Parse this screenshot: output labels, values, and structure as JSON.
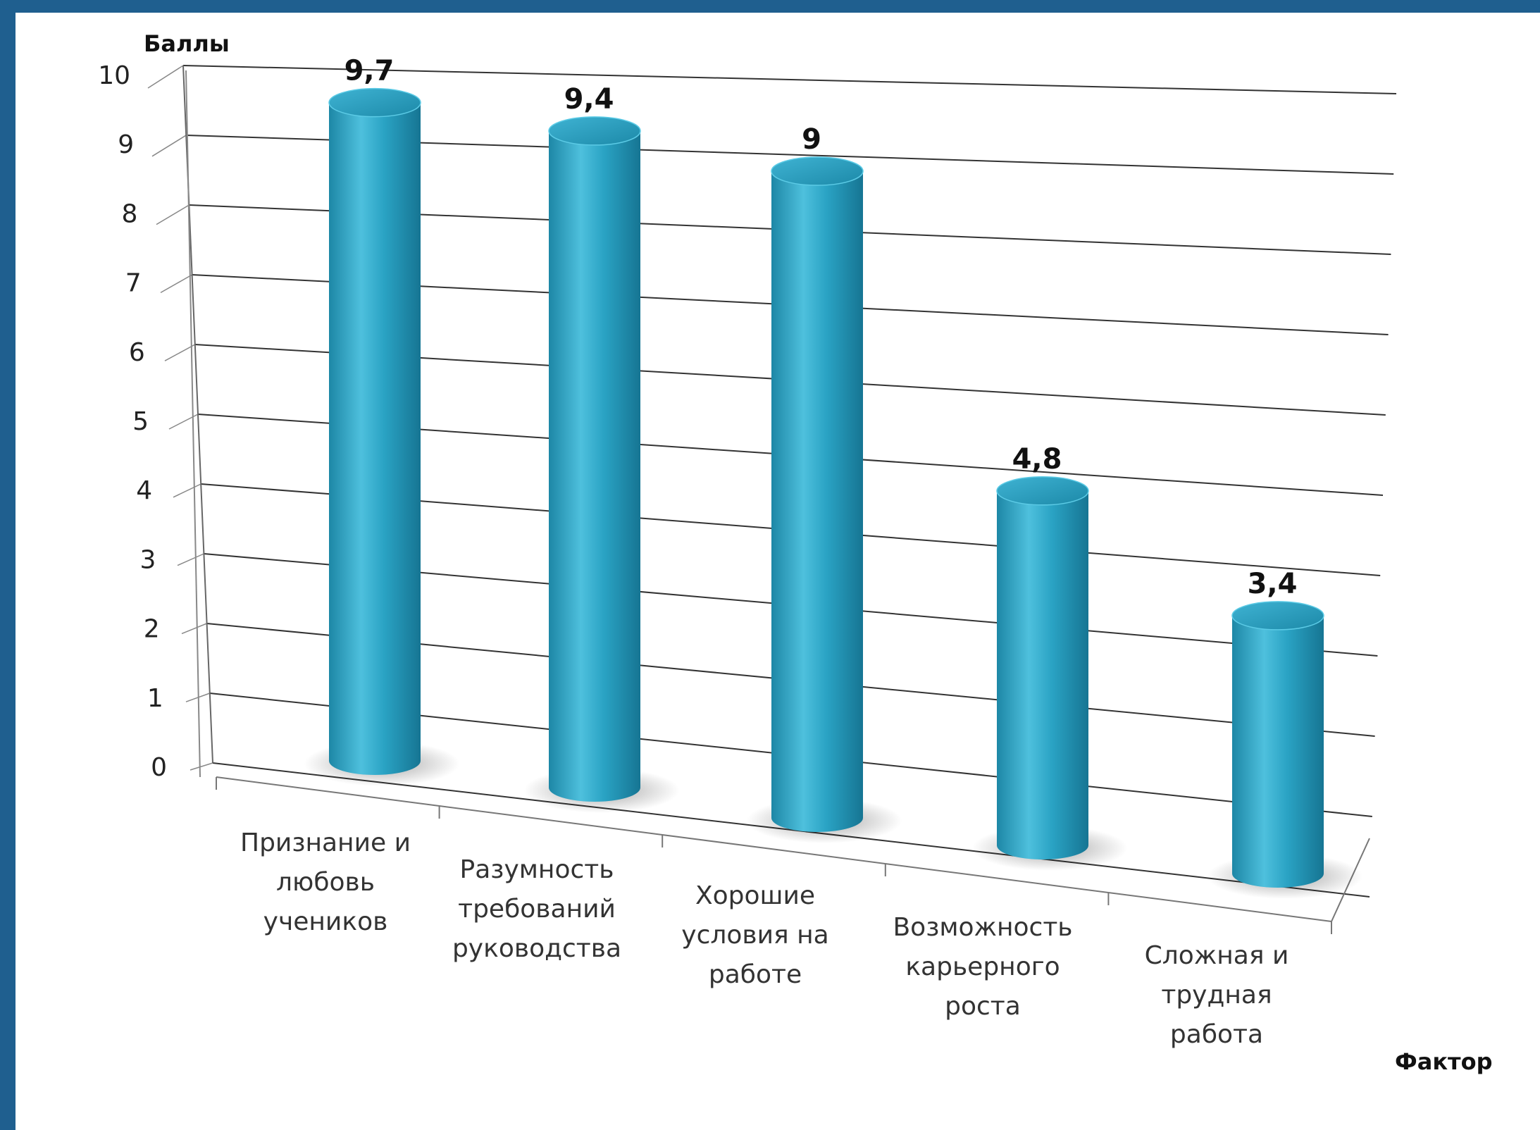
{
  "chart_data": {
    "type": "bar",
    "style": "3d-cylinder",
    "title": "",
    "ylabel": "Баллы",
    "xlabel": "Фактор",
    "ylim": [
      0,
      10
    ],
    "yticks": [
      "0",
      "1",
      "2",
      "3",
      "4",
      "5",
      "6",
      "7",
      "8",
      "9",
      "10"
    ],
    "grid": true,
    "categories": [
      [
        "Признание и",
        "любовь",
        "учеников"
      ],
      [
        "Разумность",
        "требований",
        "руководства"
      ],
      [
        "Хорошие",
        "условия на",
        "работе"
      ],
      [
        "Возможность",
        "карьерного",
        "роста"
      ],
      [
        "Сложная и",
        "трудная",
        "работа"
      ]
    ],
    "values": [
      9.7,
      9.4,
      9,
      4.8,
      3.4
    ],
    "value_labels": [
      "9,7",
      "9,4",
      "9",
      "4,8",
      "3,4"
    ],
    "colors": {
      "bar": "#2aa3c4",
      "grid": "#222222",
      "frame": "#1f5f8f"
    }
  }
}
